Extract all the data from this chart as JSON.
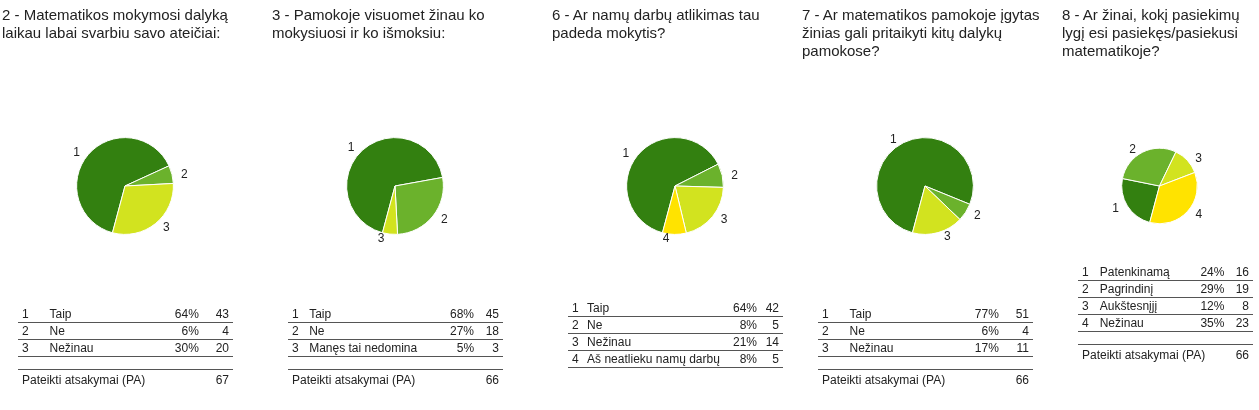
{
  "chart_data": [
    {
      "type": "pie",
      "title": "2 - Matematikos mokymosi dalyką laikau labai svarbiu savo ateičiai:",
      "categories": [
        "1",
        "2",
        "3"
      ],
      "values": [
        64,
        6,
        30
      ],
      "colors": [
        "#338010",
        "#6bb22c",
        "#d2e31f"
      ],
      "legend": false,
      "annotations": [
        {
          "text": "Taip",
          "x": "1"
        },
        {
          "text": "64%",
          "x": "1"
        },
        {
          "text": "43",
          "x": "1"
        },
        {
          "text": "Ne",
          "x": "2"
        },
        {
          "text": "6%",
          "x": "2"
        },
        {
          "text": "4",
          "x": "2"
        },
        {
          "text": "Nežinau",
          "x": "3"
        },
        {
          "text": "30%",
          "x": "3"
        },
        {
          "text": "20",
          "x": "3"
        },
        "Pateikti atsakymai (PA)",
        "67"
      ]
    },
    {
      "type": "pie",
      "title": "3 - Pamokoje visuomet žinau ko mokysiuosi ir ko išmoksiu:",
      "categories": [
        "1",
        "2",
        "3"
      ],
      "values": [
        68,
        27,
        5
      ],
      "colors": [
        "#338010",
        "#6bb22c",
        "#d2e31f"
      ],
      "legend": false,
      "annotations": [
        {
          "text": "Taip",
          "x": "1"
        },
        {
          "text": "68%",
          "x": "1"
        },
        {
          "text": "45",
          "x": "1"
        },
        {
          "text": "Ne",
          "x": "2"
        },
        {
          "text": "27%",
          "x": "2"
        },
        {
          "text": "18",
          "x": "2"
        },
        {
          "text": "Manęs tai nedomina",
          "x": "3"
        },
        {
          "text": "5%",
          "x": "3"
        },
        {
          "text": "3",
          "x": "3"
        },
        "Pateikti atsakymai (PA)",
        "66"
      ]
    },
    {
      "type": "pie",
      "title": "6 - Ar namų darbų atlikimas tau padeda mokytis?",
      "categories": [
        "1",
        "2",
        "3",
        "4"
      ],
      "values": [
        64,
        8,
        21,
        8
      ],
      "colors": [
        "#338010",
        "#6bb22c",
        "#d2e31f",
        "#ffe300"
      ],
      "legend": false,
      "annotations": [
        {
          "text": "Taip",
          "x": "1"
        },
        {
          "text": "64%",
          "x": "1"
        },
        {
          "text": "42",
          "x": "1"
        },
        {
          "text": "Ne",
          "x": "2"
        },
        {
          "text": "8%",
          "x": "2"
        },
        {
          "text": "5",
          "x": "2"
        },
        {
          "text": "Nežinau",
          "x": "3"
        },
        {
          "text": "21%",
          "x": "3"
        },
        {
          "text": "14",
          "x": "3"
        },
        {
          "text": "Aš neatlieku namų darbų",
          "x": "4"
        },
        {
          "text": "8%",
          "x": "4"
        },
        {
          "text": "5",
          "x": "4"
        }
      ]
    },
    {
      "type": "pie",
      "title": "7 - Ar matematikos pamokoje įgytas žinias gali pritaikyti kitų dalykų pamokose?",
      "categories": [
        "1",
        "2",
        "3"
      ],
      "values": [
        77,
        6,
        17
      ],
      "colors": [
        "#338010",
        "#6bb22c",
        "#d2e31f"
      ],
      "legend": false,
      "annotations": [
        {
          "text": "Taip",
          "x": "1"
        },
        {
          "text": "77%",
          "x": "1"
        },
        {
          "text": "51",
          "x": "1"
        },
        {
          "text": "Ne",
          "x": "2"
        },
        {
          "text": "6%",
          "x": "2"
        },
        {
          "text": "4",
          "x": "2"
        },
        {
          "text": "Nežinau",
          "x": "3"
        },
        {
          "text": "17%",
          "x": "3"
        },
        {
          "text": "11",
          "x": "3"
        },
        "Pateikti atsakymai (PA)",
        "66"
      ]
    },
    {
      "type": "pie",
      "title": "8 - Ar žinai, kokį pasiekimų lygį esi pasiekęs/pasiekusi matematikoje?",
      "categories": [
        "1",
        "2",
        "3",
        "4"
      ],
      "values": [
        24,
        29,
        12,
        35
      ],
      "colors": [
        "#338010",
        "#6bb22c",
        "#d2e31f",
        "#ffe300"
      ],
      "legend": false,
      "annotations": [
        {
          "text": "Patenkinamą",
          "x": "1"
        },
        {
          "text": "24%",
          "x": "1"
        },
        {
          "text": "16",
          "x": "1"
        },
        {
          "text": "Pagrindinį",
          "x": "2"
        },
        {
          "text": "29%",
          "x": "2"
        },
        {
          "text": "19",
          "x": "2"
        },
        {
          "text": "Aukštesnįjį",
          "x": "3"
        },
        {
          "text": "12%",
          "x": "3"
        },
        {
          "text": "8",
          "x": "3"
        },
        {
          "text": "Nežinau",
          "x": "4"
        },
        {
          "text": "35%",
          "x": "4"
        },
        {
          "text": "23",
          "x": "4"
        },
        "Pateikti atsakymai (PA)",
        "66"
      ]
    }
  ]
}
